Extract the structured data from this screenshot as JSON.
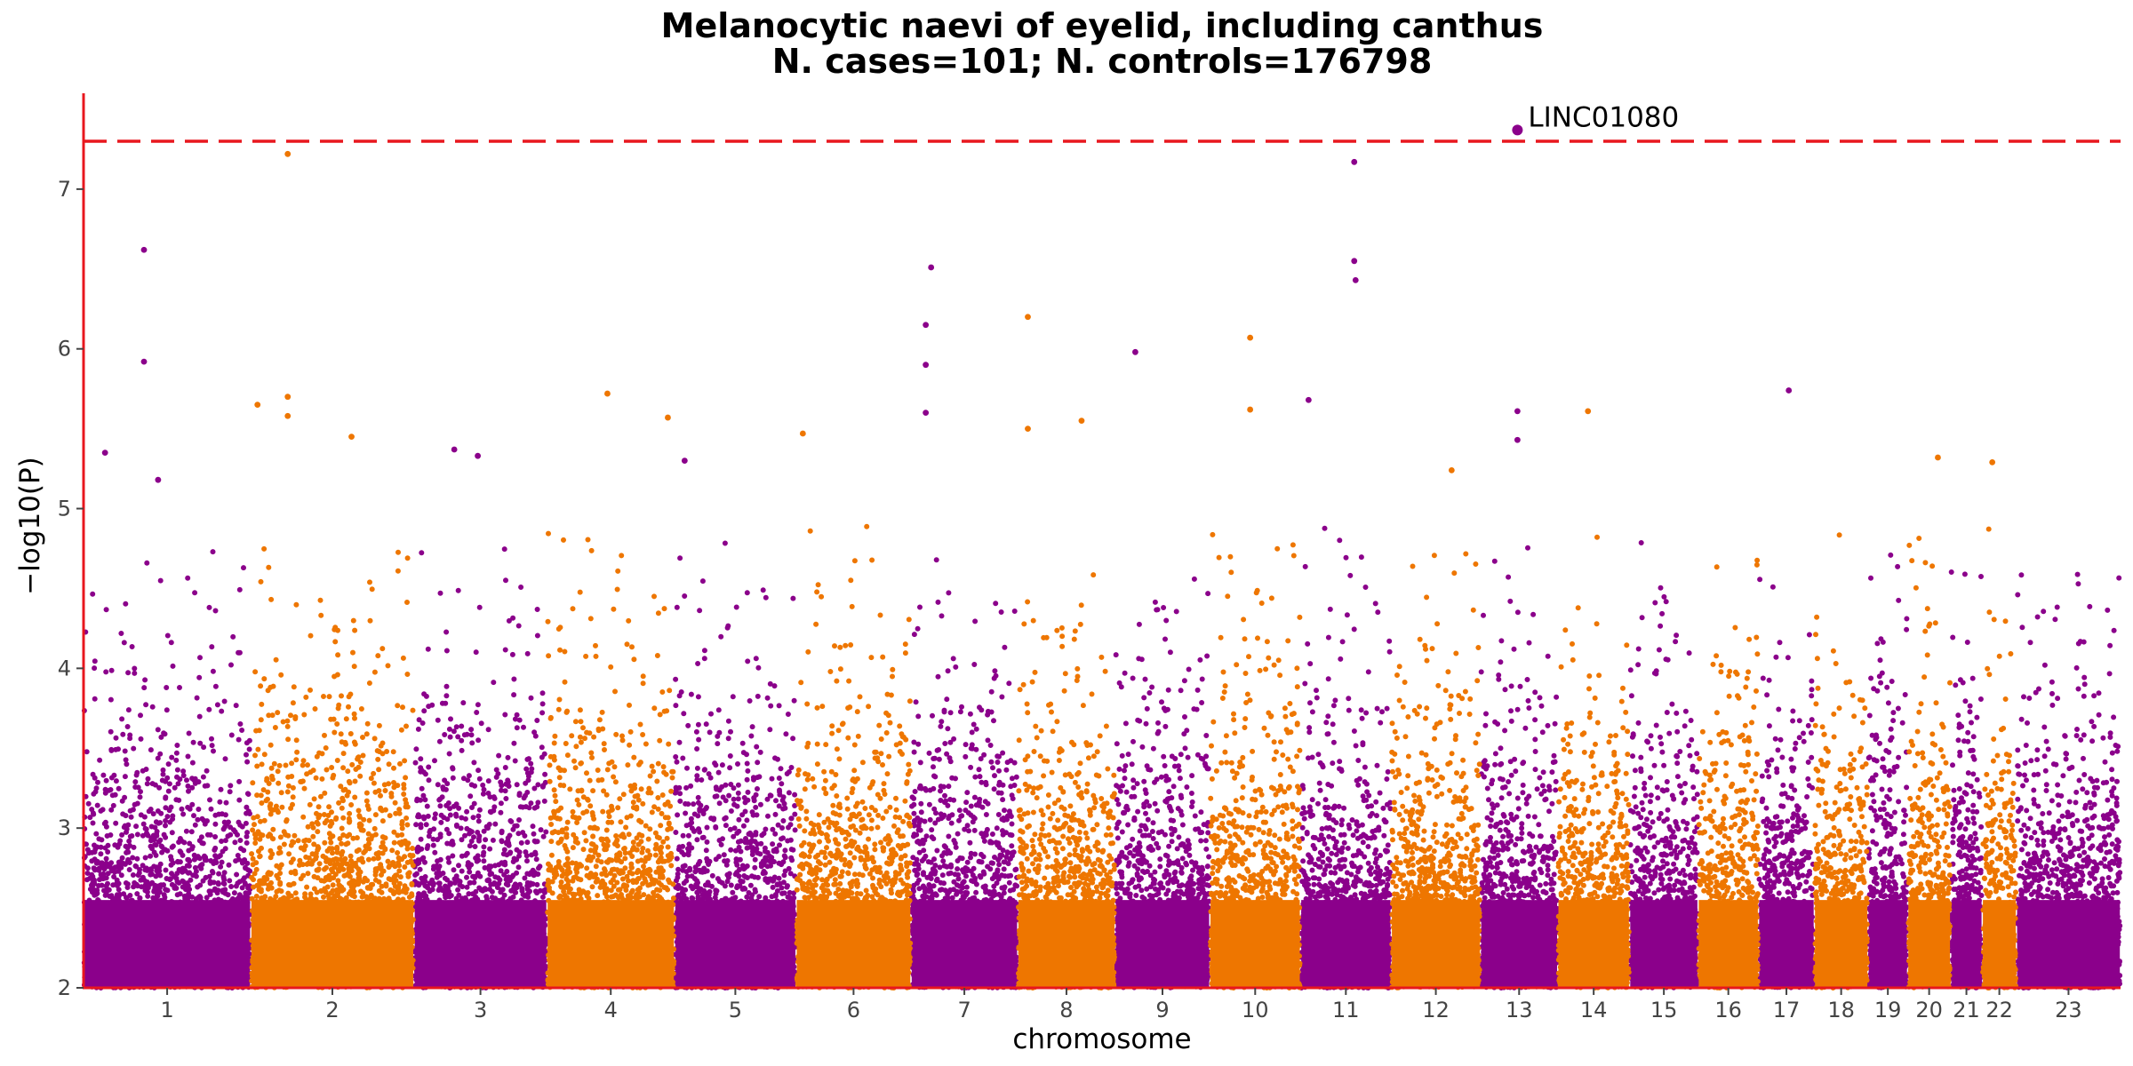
{
  "chart_data": {
    "type": "scatter",
    "subtype": "manhattan",
    "title": "Melanocytic naevi of eyelid, including canthus",
    "subtitle": "N. cases=101; N. controls=176798",
    "xlabel": "chromosome",
    "ylabel": "−log10(P)",
    "ylim": [
      2,
      7.6
    ],
    "yticks": [
      2,
      3,
      4,
      5,
      6,
      7
    ],
    "grid": false,
    "legend": "none",
    "significance_threshold": 7.3,
    "colors": {
      "odd": "#8B008B",
      "even": "#EE7600",
      "threshold": "#E8171E",
      "axis": "#E8171E"
    },
    "chromosomes": [
      {
        "label": "1",
        "start": 0,
        "end": 249
      },
      {
        "label": "2",
        "start": 249,
        "end": 492
      },
      {
        "label": "3",
        "start": 492,
        "end": 690
      },
      {
        "label": "4",
        "start": 690,
        "end": 880
      },
      {
        "label": "5",
        "start": 880,
        "end": 1061
      },
      {
        "label": "6",
        "start": 1061,
        "end": 1232
      },
      {
        "label": "7",
        "start": 1232,
        "end": 1391
      },
      {
        "label": "8",
        "start": 1391,
        "end": 1536
      },
      {
        "label": "9",
        "start": 1536,
        "end": 1677
      },
      {
        "label": "10",
        "start": 1677,
        "end": 1812
      },
      {
        "label": "11",
        "start": 1812,
        "end": 1947
      },
      {
        "label": "12",
        "start": 1947,
        "end": 2080
      },
      {
        "label": "13",
        "start": 2080,
        "end": 2195
      },
      {
        "label": "14",
        "start": 2195,
        "end": 2302
      },
      {
        "label": "15",
        "start": 2302,
        "end": 2404
      },
      {
        "label": "16",
        "start": 2404,
        "end": 2494
      },
      {
        "label": "17",
        "start": 2494,
        "end": 2577
      },
      {
        "label": "18",
        "start": 2577,
        "end": 2657
      },
      {
        "label": "19",
        "start": 2657,
        "end": 2716
      },
      {
        "label": "20",
        "start": 2716,
        "end": 2780
      },
      {
        "label": "21",
        "start": 2780,
        "end": 2827
      },
      {
        "label": "22",
        "start": 2827,
        "end": 2878
      },
      {
        "label": "23",
        "start": 2878,
        "end": 3033
      }
    ],
    "top_hits": [
      {
        "chr": "1",
        "pos": 90,
        "p": 6.62
      },
      {
        "chr": "1",
        "pos": 90,
        "p": 5.92
      },
      {
        "chr": "1",
        "pos": 32,
        "p": 5.35
      },
      {
        "chr": "1",
        "pos": 111,
        "p": 5.18
      },
      {
        "chr": "2",
        "pos": 55,
        "p": 7.22
      },
      {
        "chr": "2",
        "pos": 10,
        "p": 5.65
      },
      {
        "chr": "2",
        "pos": 55,
        "p": 5.7
      },
      {
        "chr": "2",
        "pos": 55,
        "p": 5.58
      },
      {
        "chr": "2",
        "pos": 150,
        "p": 5.45
      },
      {
        "chr": "3",
        "pos": 60,
        "p": 5.37
      },
      {
        "chr": "3",
        "pos": 95,
        "p": 5.33
      },
      {
        "chr": "4",
        "pos": 90,
        "p": 5.72
      },
      {
        "chr": "4",
        "pos": 180,
        "p": 5.57
      },
      {
        "chr": "5",
        "pos": 15,
        "p": 5.3
      },
      {
        "chr": "6",
        "pos": 10,
        "p": 5.47
      },
      {
        "chr": "7",
        "pos": 30,
        "p": 6.51
      },
      {
        "chr": "7",
        "pos": 22,
        "p": 6.15
      },
      {
        "chr": "7",
        "pos": 22,
        "p": 5.9
      },
      {
        "chr": "7",
        "pos": 22,
        "p": 5.6
      },
      {
        "chr": "8",
        "pos": 15,
        "p": 6.2
      },
      {
        "chr": "8",
        "pos": 15,
        "p": 5.5
      },
      {
        "chr": "8",
        "pos": 95,
        "p": 5.55
      },
      {
        "chr": "9",
        "pos": 30,
        "p": 5.98
      },
      {
        "chr": "10",
        "pos": 60,
        "p": 6.07
      },
      {
        "chr": "10",
        "pos": 60,
        "p": 5.62
      },
      {
        "chr": "11",
        "pos": 12,
        "p": 5.68
      },
      {
        "chr": "11",
        "pos": 80,
        "p": 7.17
      },
      {
        "chr": "11",
        "pos": 80,
        "p": 6.55
      },
      {
        "chr": "11",
        "pos": 82,
        "p": 6.43
      },
      {
        "chr": "12",
        "pos": 90,
        "p": 5.24
      },
      {
        "chr": "13",
        "pos": 55,
        "p": 7.37,
        "label": "LINC01080"
      },
      {
        "chr": "13",
        "pos": 55,
        "p": 5.61
      },
      {
        "chr": "13",
        "pos": 55,
        "p": 5.43
      },
      {
        "chr": "14",
        "pos": 45,
        "p": 5.61
      },
      {
        "chr": "17",
        "pos": 45,
        "p": 5.74
      },
      {
        "chr": "20",
        "pos": 45,
        "p": 5.32
      },
      {
        "chr": "22",
        "pos": 15,
        "p": 5.29
      }
    ],
    "annotations": [
      {
        "text": "LINC01080",
        "chr": "13",
        "pos": 55,
        "p": 7.37
      }
    ]
  }
}
